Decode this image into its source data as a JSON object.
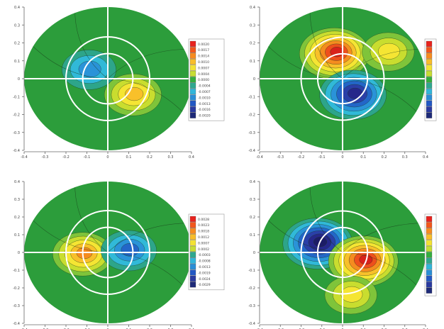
{
  "chart_data": [
    {
      "type": "contour",
      "panel": "top-left",
      "xlim": [
        -0.4,
        0.4
      ],
      "ylim": [
        -0.4,
        0.4
      ],
      "x_ticks": [
        "-0.4",
        "-0.3",
        "-0.2",
        "-0.1",
        "0",
        "0.1",
        "0.2",
        "0.3",
        "0.4"
      ],
      "y_ticks": [
        "0.4",
        "0.3",
        "0.2",
        "0.1",
        "0",
        "-0.1",
        "-0.2",
        "-0.3",
        "-0.4"
      ],
      "colorbar_labels": [
        "0.0020",
        "0.0017",
        "0.0014",
        "0.0010",
        "0.0007",
        "0.0004",
        "0.0000",
        "-0.0004",
        "-0.0007",
        "-0.0010",
        "-0.0013",
        "-0.0016",
        "-0.0020"
      ],
      "features": [
        {
          "sign": "negative",
          "intensity": 0.45,
          "cx": -0.09,
          "cy": 0.05
        },
        {
          "sign": "positive",
          "intensity": 0.55,
          "cx": 0.12,
          "cy": -0.09
        }
      ]
    },
    {
      "type": "contour",
      "panel": "top-right",
      "xlim": [
        -0.4,
        0.4
      ],
      "ylim": [
        -0.4,
        0.4
      ],
      "x_ticks": [
        "-0.4",
        "-0.3",
        "-0.2",
        "-0.1",
        "0",
        "0.1",
        "0.2",
        "0.3",
        "0.4"
      ],
      "y_ticks": [
        "0.4",
        "0.3",
        "0.2",
        "0.1",
        "0",
        "-0.1",
        "-0.2",
        "-0.3",
        "-0.4"
      ],
      "colorbar_labels": [
        "",
        "",
        "",
        "",
        "",
        "",
        "",
        "",
        "",
        "",
        "",
        "",
        ""
      ],
      "features": [
        {
          "sign": "positive",
          "intensity": 1.0,
          "cx": -0.04,
          "cy": 0.14
        },
        {
          "sign": "negative",
          "intensity": 0.9,
          "cx": 0.05,
          "cy": -0.09
        },
        {
          "sign": "positive",
          "intensity": 0.4,
          "cx": 0.22,
          "cy": 0.15
        }
      ]
    },
    {
      "type": "contour",
      "panel": "bottom-left",
      "xlim": [
        -0.4,
        0.4
      ],
      "ylim": [
        -0.4,
        0.4
      ],
      "x_ticks": [
        "-0.4",
        "-0.3",
        "-0.2",
        "-0.1",
        "0",
        "0.1",
        "0.2",
        "0.3",
        "0.4"
      ],
      "y_ticks": [
        "0.4",
        "0.3",
        "0.2",
        "0.1",
        "0",
        "-0.1",
        "-0.2",
        "-0.3",
        "-0.4"
      ],
      "colorbar_labels": [
        "0.0028",
        "0.0023",
        "0.0018",
        "0.0012",
        "0.0007",
        "0.0002",
        "-0.0003",
        "-0.0008",
        "-0.0013",
        "-0.0019",
        "-0.0024",
        "-0.0029"
      ],
      "features": [
        {
          "sign": "positive",
          "intensity": 0.65,
          "cx": -0.12,
          "cy": -0.01
        },
        {
          "sign": "negative",
          "intensity": 0.5,
          "cx": 0.1,
          "cy": 0.01
        }
      ]
    },
    {
      "type": "contour",
      "panel": "bottom-right",
      "xlim": [
        -0.4,
        0.4
      ],
      "ylim": [
        -0.4,
        0.4
      ],
      "x_ticks": [
        "-0.4",
        "-0.3",
        "-0.2",
        "-0.1",
        "0",
        "0.1",
        "0.2",
        "0.3",
        "0.4"
      ],
      "y_ticks": [
        "0.4",
        "0.3",
        "0.2",
        "0.1",
        "0",
        "-0.1",
        "-0.2",
        "-0.3",
        "-0.4"
      ],
      "colorbar_labels": [
        "",
        "",
        "",
        "",
        "",
        "",
        "",
        "",
        "",
        "",
        "",
        "",
        ""
      ],
      "features": [
        {
          "sign": "negative",
          "intensity": 1.0,
          "cx": -0.12,
          "cy": 0.05
        },
        {
          "sign": "positive",
          "intensity": 1.0,
          "cx": 0.1,
          "cy": -0.05
        },
        {
          "sign": "positive",
          "intensity": 0.4,
          "cx": 0.04,
          "cy": -0.24
        }
      ]
    }
  ]
}
